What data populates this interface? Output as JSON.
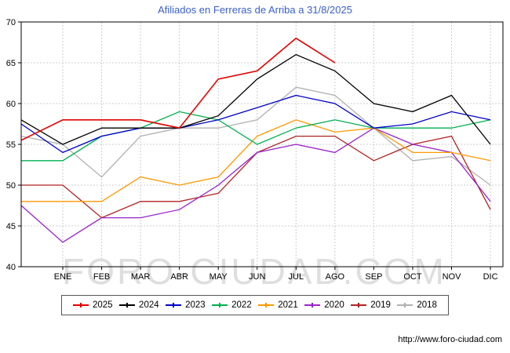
{
  "title": "Afiliados en Ferreras de Arriba a 31/8/2025",
  "watermark": "FORO-CIUDAD.COM",
  "footer_url": "http://www.foro-ciudad.com",
  "chart_data": {
    "type": "line",
    "title": "Afiliados en Ferreras de Arriba a 31/8/2025",
    "x_labels": [
      "ENE",
      "FEB",
      "MAR",
      "ABR",
      "MAY",
      "JUN",
      "JUL",
      "AGO",
      "SEP",
      "OCT",
      "NOV",
      "DIC"
    ],
    "ylim": [
      40,
      70
    ],
    "y_ticks": [
      40,
      45,
      50,
      55,
      60,
      65,
      70
    ],
    "grid": true,
    "legend_position": "bottom",
    "series": [
      {
        "name": "2025",
        "color": "#e50000",
        "start_value": 55.5,
        "values": [
          58,
          58,
          58,
          57,
          63,
          64,
          68,
          65
        ]
      },
      {
        "name": "2024",
        "color": "#000000",
        "start_value": 58,
        "values": [
          55,
          57,
          57,
          57,
          58.5,
          63,
          66,
          64,
          60,
          59,
          61,
          55
        ]
      },
      {
        "name": "2023",
        "color": "#0000cc",
        "start_value": 57.5,
        "values": [
          54,
          56,
          57,
          57,
          58,
          59.5,
          61,
          60,
          57,
          57.5,
          59,
          58
        ]
      },
      {
        "name": "2022",
        "color": "#00b050",
        "start_value": 53,
        "values": [
          53,
          56,
          57,
          59,
          58,
          55,
          57,
          58,
          57,
          57,
          57,
          58
        ]
      },
      {
        "name": "2021",
        "color": "#ff9900",
        "start_value": 48,
        "values": [
          48,
          48,
          51,
          50,
          51,
          56,
          58,
          56.5,
          57,
          54,
          54,
          53
        ]
      },
      {
        "name": "2020",
        "color": "#9922cc",
        "start_value": 47.5,
        "values": [
          43,
          46,
          46,
          47,
          50,
          54,
          55,
          54,
          57,
          55,
          54,
          48
        ]
      },
      {
        "name": "2019",
        "color": "#b22222",
        "start_value": 50,
        "values": [
          50,
          46,
          48,
          48,
          49,
          54,
          56,
          56,
          53,
          55,
          56,
          47
        ]
      },
      {
        "name": "2018",
        "color": "#b0b0b0",
        "start_value": 56,
        "values": [
          55,
          51,
          56,
          57,
          57,
          58,
          62,
          61,
          57,
          53,
          53.5,
          50
        ]
      }
    ]
  }
}
